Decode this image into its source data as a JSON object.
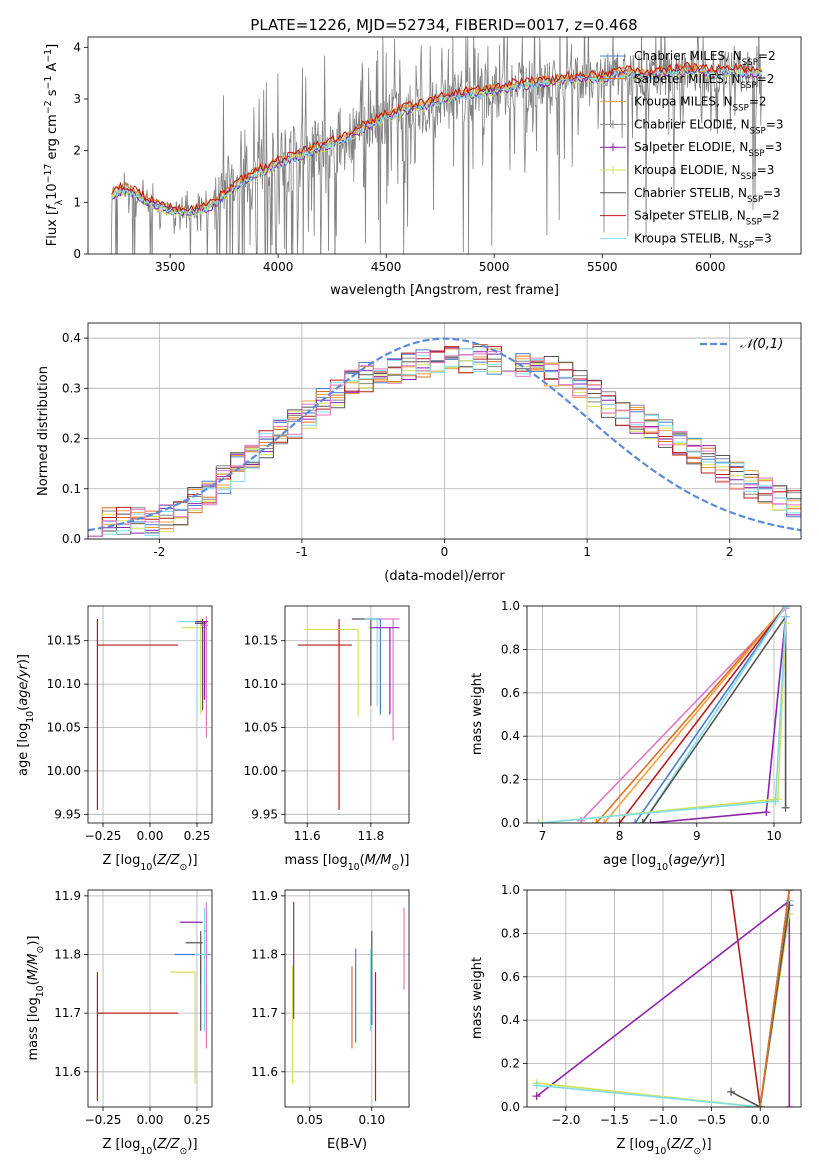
{
  "figure_title": "PLATE=1226, MJD=52734, FIBERID=0017, z=0.468",
  "colors": {
    "chabrier_miles": "#4a7fd0",
    "salpeter_miles": "#e07020",
    "kroupa_miles": "#f0a040",
    "chabrier_elodie": "#888888",
    "salpeter_elodie": "#8e24aa",
    "kroupa_elodie": "#d4e157",
    "chabrier_stelib": "#555555",
    "salpeter_stelib": "#b71c1c",
    "kroupa_stelib": "#80deea",
    "extra_pink": "#e377c2",
    "normal_curve": "#5b8bd9"
  },
  "chart_data": [
    {
      "id": "spectrum",
      "type": "line",
      "title": "PLATE=1226, MJD=52734, FIBERID=0017, z=0.468",
      "xlabel": "wavelength [Angstrom, rest frame]",
      "ylabel": "Flux [f_λ 10^-17 erg cm^-2 s^-1 A^-1]",
      "xlim": [
        3120,
        6420
      ],
      "ylim": [
        0,
        4.2
      ],
      "xticks": [
        3500,
        4000,
        4500,
        5000,
        5500,
        6000
      ],
      "yticks": [
        0,
        1,
        2,
        3,
        4
      ],
      "grid": false,
      "legend_position": "top-right",
      "legend": [
        "Chabrier MILES, N_SSP=2",
        "Salpeter MILES, N_SSP=2",
        "Kroupa MILES, N_SSP=2",
        "Chabrier ELODIE, N_SSP=3",
        "Salpeter ELODIE, N_SSP=3",
        "Kroupa ELODIE, N_SSP=3",
        "Chabrier STELIB, N_SSP=3",
        "Salpeter STELIB, N_SSP=2",
        "Kroupa STELIB, N_SSP=3"
      ],
      "observed_trend": {
        "x": [
          3200,
          3250,
          3300,
          3400,
          3500,
          3600,
          3700,
          3800,
          3900,
          4000,
          4100,
          4200,
          4300,
          4400,
          4500,
          4600,
          4700,
          4800,
          4900,
          5000,
          5100,
          5200,
          5300,
          5400,
          5500,
          5600,
          5700,
          5800,
          5900,
          6000,
          6100,
          6200
        ],
        "y": [
          1.1,
          1.2,
          1.25,
          1.0,
          0.85,
          0.8,
          0.95,
          1.3,
          1.55,
          1.75,
          1.9,
          2.05,
          2.2,
          2.45,
          2.65,
          2.8,
          2.9,
          3.05,
          3.1,
          3.15,
          3.25,
          3.3,
          3.35,
          3.4,
          3.4,
          3.5,
          3.45,
          3.5,
          3.55,
          3.5,
          3.55,
          3.5
        ]
      }
    },
    {
      "id": "residuals",
      "type": "line",
      "xlabel": "(data-model)/error",
      "ylabel": "Normed distribution",
      "xlim": [
        -2.5,
        2.5
      ],
      "ylim": [
        0,
        0.43
      ],
      "xticks": [
        -2,
        -1,
        0,
        1,
        2
      ],
      "yticks": [
        0.0,
        0.1,
        0.2,
        0.3,
        0.4
      ],
      "grid": true,
      "legend_position": "top-right",
      "legend": [
        "𝒩(0,1)"
      ],
      "histogram_envelope": {
        "x": [
          -2.5,
          -2.0,
          -1.7,
          -1.5,
          -1.2,
          -1.0,
          -0.7,
          -0.5,
          -0.2,
          0.0,
          0.2,
          0.5,
          0.8,
          1.0,
          1.2,
          1.5,
          1.8,
          2.0,
          2.3,
          2.5
        ],
        "y": [
          0.035,
          0.035,
          0.08,
          0.13,
          0.2,
          0.24,
          0.3,
          0.33,
          0.35,
          0.36,
          0.36,
          0.35,
          0.33,
          0.3,
          0.26,
          0.22,
          0.17,
          0.13,
          0.09,
          0.06
        ]
      }
    },
    {
      "id": "z_age",
      "type": "scatter",
      "xlabel": "Z [log10(Z/Z☉)]",
      "ylabel": "age [log10(age/yr)]",
      "xlim": [
        -0.33,
        0.33
      ],
      "ylim": [
        9.94,
        10.19
      ],
      "xticks": [
        -0.25,
        0.0,
        0.25
      ],
      "xtick_labels": [
        "−0.25",
        "0.00",
        "0.25"
      ],
      "yticks": [
        9.95,
        10.0,
        10.05,
        10.1,
        10.15
      ],
      "grid": true
    },
    {
      "id": "mass_age",
      "type": "scatter",
      "xlabel": "mass [log10(M/M☉)]",
      "ylabel": "",
      "xlim": [
        11.53,
        11.92
      ],
      "ylim": [
        9.94,
        10.19
      ],
      "xticks": [
        11.6,
        11.8
      ],
      "yticks": [
        9.95,
        10.0,
        10.05,
        10.1,
        10.15
      ],
      "grid": true
    },
    {
      "id": "age_weight",
      "type": "line",
      "xlabel": "age [log10(age/yr)]",
      "ylabel": "mass weight",
      "xlim": [
        6.8,
        10.35
      ],
      "ylim": [
        0,
        1.0
      ],
      "xticks": [
        7,
        8,
        9,
        10
      ],
      "yticks": [
        0.0,
        0.2,
        0.4,
        0.6,
        0.8,
        1.0
      ],
      "grid": true
    },
    {
      "id": "z_mass",
      "type": "scatter",
      "xlabel": "Z [log10(Z/Z☉)]",
      "ylabel": "mass [log10(M/M☉)]",
      "xlim": [
        -0.33,
        0.33
      ],
      "ylim": [
        11.54,
        11.91
      ],
      "xticks": [
        -0.25,
        0.0,
        0.25
      ],
      "xtick_labels": [
        "−0.25",
        "0.00",
        "0.25"
      ],
      "yticks": [
        11.6,
        11.7,
        11.8,
        11.9
      ],
      "grid": true
    },
    {
      "id": "ebv_mass",
      "type": "scatter",
      "xlabel": "E(B-V)",
      "ylabel": "",
      "xlim": [
        0.03,
        0.13
      ],
      "ylim": [
        11.54,
        11.91
      ],
      "xticks": [
        0.05,
        0.1
      ],
      "xtick_labels": [
        "0.05",
        "0.10"
      ],
      "yticks": [
        11.6,
        11.7,
        11.8,
        11.9
      ],
      "grid": true
    },
    {
      "id": "z_weight",
      "type": "line",
      "xlabel": "Z [log10(Z/Z☉)]",
      "ylabel": "mass weight",
      "xlim": [
        -2.4,
        0.42
      ],
      "ylim": [
        0,
        1.0
      ],
      "xticks": [
        -2.0,
        -1.5,
        -1.0,
        -0.5,
        0.0
      ],
      "xtick_labels": [
        "−2.0",
        "−1.5",
        "−1.0",
        "−0.5",
        "0.0"
      ],
      "yticks": [
        0.0,
        0.2,
        0.4,
        0.6,
        0.8,
        1.0
      ],
      "grid": true
    }
  ]
}
